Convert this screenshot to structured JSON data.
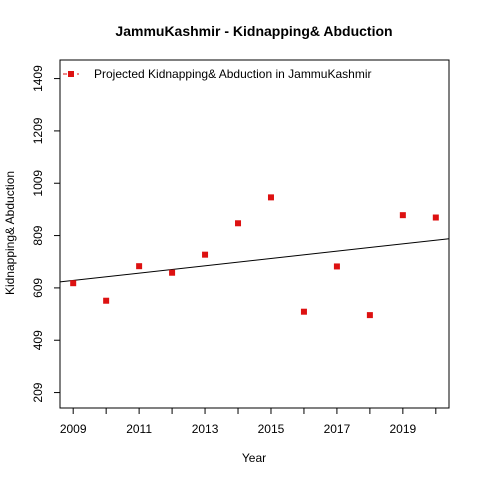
{
  "chart_data": {
    "type": "scatter",
    "title": "JammuKashmir  -  Kidnapping& Abduction",
    "xlabel": "Year",
    "ylabel": "Kidnapping& Abduction",
    "xlim": [
      2008.6,
      2020.4
    ],
    "ylim": [
      150,
      1480
    ],
    "xticks": [
      2009,
      2011,
      2013,
      2015,
      2017,
      2019
    ],
    "xtick_minor": [
      2010,
      2012,
      2014,
      2016,
      2018,
      2020
    ],
    "yticks": [
      209,
      409,
      609,
      809,
      1009,
      1209,
      1409
    ],
    "legend": {
      "label": "Projected  Kidnapping& Abduction  in  JammuKashmir",
      "position": "top-left"
    },
    "series": [
      {
        "name": "Projected  Kidnapping& Abduction  in  JammuKashmir",
        "color": "#dd1111",
        "marker": "square",
        "x": [
          2009,
          2010,
          2011,
          2012,
          2013,
          2014,
          2015,
          2016,
          2017,
          2018,
          2019,
          2020
        ],
        "y": [
          627,
          560,
          692,
          667,
          736,
          856,
          955,
          518,
          691,
          505,
          887,
          878
        ]
      }
    ],
    "trendline": {
      "color": "#000000",
      "x": [
        2008.6,
        2020.4
      ],
      "y": [
        632,
        797
      ]
    }
  }
}
